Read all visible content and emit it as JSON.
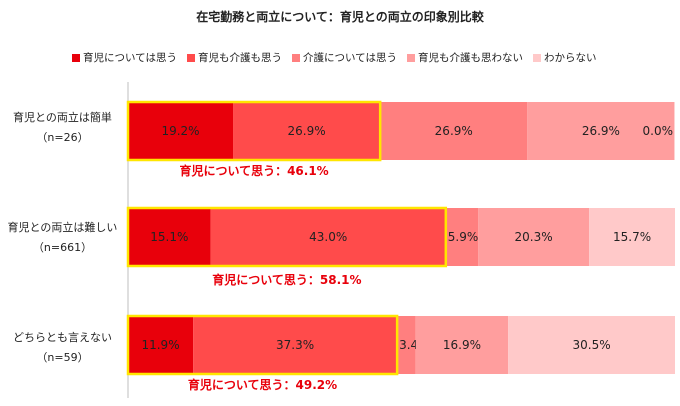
{
  "title": "在宅勤務と両立について：育児との両立の印象別比較",
  "legend": [
    {
      "name": "育児については思う",
      "color": "#e8000b"
    },
    {
      "name": "育児も介護も思う",
      "color": "#ff4b4b"
    },
    {
      "name": "介護については思う",
      "color": "#ff7f7f"
    },
    {
      "name": "育児も介護も思わない",
      "color": "#ff9e9e"
    },
    {
      "name": "わからない",
      "color": "#ffc9c9"
    }
  ],
  "categories": [
    {
      "label": "育児との両立は簡単",
      "n": "（n=26）"
    },
    {
      "label": "育児との両立は難しい",
      "n": "（n=661）"
    },
    {
      "label": "どちらとも言えない",
      "n": "（n=59）"
    }
  ],
  "chart_data": {
    "type": "bar",
    "orientation": "horizontal-stacked-100",
    "title": "在宅勤務と両立について：育児との両立の印象別比較",
    "categories": [
      "育児との両立は簡単 (n=26)",
      "育児との両立は難しい (n=661)",
      "どちらとも言えない (n=59)"
    ],
    "series": [
      {
        "name": "育児については思う",
        "values": [
          19.2,
          15.1,
          11.9
        ],
        "labels": [
          "19.2%",
          "15.1%",
          "11.9%"
        ]
      },
      {
        "name": "育児も介護も思う",
        "values": [
          26.9,
          43.0,
          37.3
        ],
        "labels": [
          "26.9%",
          "43.0%",
          "37.3%"
        ]
      },
      {
        "name": "介護については思う",
        "values": [
          26.9,
          5.9,
          3.4
        ],
        "labels": [
          "26.9%",
          "5.9%",
          "3.4%"
        ]
      },
      {
        "name": "育児も介護も思わない",
        "values": [
          26.9,
          20.3,
          16.9
        ],
        "labels": [
          "26.9%",
          "20.3%",
          "16.9%"
        ]
      },
      {
        "name": "わからない",
        "values": [
          0.0,
          15.7,
          30.5
        ],
        "labels": [
          "0.0%",
          "15.7%",
          "30.5%"
        ]
      }
    ],
    "annotations": [
      "育児について思う：46.1%",
      "育児について思う：58.1%",
      "育児について思う：49.2%"
    ],
    "highlight_color": "#ffe600",
    "annotation_color": "#e8000b",
    "xlim": [
      0,
      100
    ],
    "grid": false
  }
}
